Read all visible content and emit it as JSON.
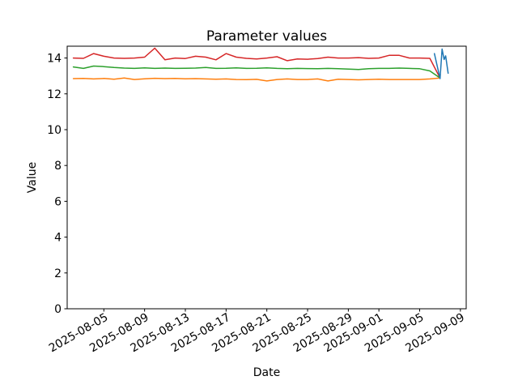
{
  "chart_data": {
    "type": "line",
    "title": "Parameter values",
    "xlabel": "Date",
    "ylabel": "Value",
    "grid": false,
    "legend": null,
    "background": "#ffffff",
    "spine_color": "#000000",
    "ylim": [
      0,
      14.66
    ],
    "xlim_days": [
      -0.6,
      38.57
    ],
    "start_date": "2025-08-02",
    "y_ticks": [
      0,
      2,
      4,
      6,
      8,
      10,
      12,
      14
    ],
    "x_ticks": [
      {
        "label": "2025-08-05",
        "day": 3
      },
      {
        "label": "2025-08-09",
        "day": 7
      },
      {
        "label": "2025-08-13",
        "day": 11
      },
      {
        "label": "2025-08-17",
        "day": 15
      },
      {
        "label": "2025-08-21",
        "day": 19
      },
      {
        "label": "2025-08-25",
        "day": 23
      },
      {
        "label": "2025-08-29",
        "day": 27
      },
      {
        "label": "2025-09-01",
        "day": 30
      },
      {
        "label": "2025-09-05",
        "day": 34
      },
      {
        "label": "2025-09-09",
        "day": 38
      }
    ],
    "series": [
      {
        "name": "series-red",
        "color": "#d62728",
        "x": [
          0,
          1,
          2,
          3,
          4,
          5,
          6,
          7,
          8,
          9,
          10,
          11,
          12,
          13,
          14,
          15,
          16,
          17,
          18,
          19,
          20,
          21,
          22,
          23,
          24,
          25,
          26,
          27,
          28,
          29,
          30,
          31,
          32,
          33,
          34,
          35,
          36
        ],
        "values": [
          14.0,
          13.98,
          14.25,
          14.1,
          14.0,
          13.98,
          14.0,
          14.05,
          14.55,
          13.9,
          14.0,
          13.97,
          14.1,
          14.05,
          13.9,
          14.25,
          14.05,
          13.98,
          13.95,
          14.0,
          14.07,
          13.85,
          13.95,
          13.93,
          13.97,
          14.05,
          14.0,
          14.0,
          14.02,
          13.98,
          14.0,
          14.15,
          14.15,
          14.0,
          14.0,
          13.98,
          12.88
        ]
      },
      {
        "name": "series-green",
        "color": "#2ca02c",
        "x": [
          0,
          1,
          2,
          3,
          4,
          5,
          6,
          7,
          8,
          9,
          10,
          11,
          12,
          13,
          14,
          15,
          16,
          17,
          18,
          19,
          20,
          21,
          22,
          23,
          24,
          25,
          26,
          27,
          28,
          29,
          30,
          31,
          32,
          33,
          34,
          35,
          36
        ],
        "values": [
          13.5,
          13.42,
          13.55,
          13.52,
          13.47,
          13.44,
          13.42,
          13.45,
          13.42,
          13.44,
          13.42,
          13.43,
          13.44,
          13.47,
          13.42,
          13.43,
          13.45,
          13.42,
          13.43,
          13.45,
          13.42,
          13.4,
          13.42,
          13.41,
          13.4,
          13.42,
          13.4,
          13.38,
          13.36,
          13.4,
          13.42,
          13.42,
          13.44,
          13.42,
          13.4,
          13.28,
          12.88
        ]
      },
      {
        "name": "series-orange",
        "color": "#ff7f0e",
        "x": [
          0,
          1,
          2,
          3,
          4,
          5,
          6,
          7,
          8,
          9,
          10,
          11,
          12,
          13,
          14,
          15,
          16,
          17,
          18,
          19,
          20,
          21,
          22,
          23,
          24,
          25,
          26,
          27,
          28,
          29,
          30,
          31,
          32,
          33,
          34,
          35,
          36
        ],
        "values": [
          12.85,
          12.86,
          12.83,
          12.86,
          12.82,
          12.88,
          12.8,
          12.84,
          12.87,
          12.85,
          12.86,
          12.84,
          12.85,
          12.83,
          12.82,
          12.83,
          12.8,
          12.79,
          12.81,
          12.72,
          12.8,
          12.83,
          12.8,
          12.8,
          12.83,
          12.72,
          12.82,
          12.8,
          12.78,
          12.8,
          12.82,
          12.8,
          12.8,
          12.8,
          12.8,
          12.83,
          12.88
        ]
      },
      {
        "name": "series-blue",
        "color": "#1f77b4",
        "x": [
          35.45,
          36.0,
          36.2,
          36.4,
          36.55,
          36.8
        ],
        "values": [
          14.25,
          12.85,
          14.5,
          13.92,
          14.12,
          13.15
        ]
      }
    ]
  }
}
